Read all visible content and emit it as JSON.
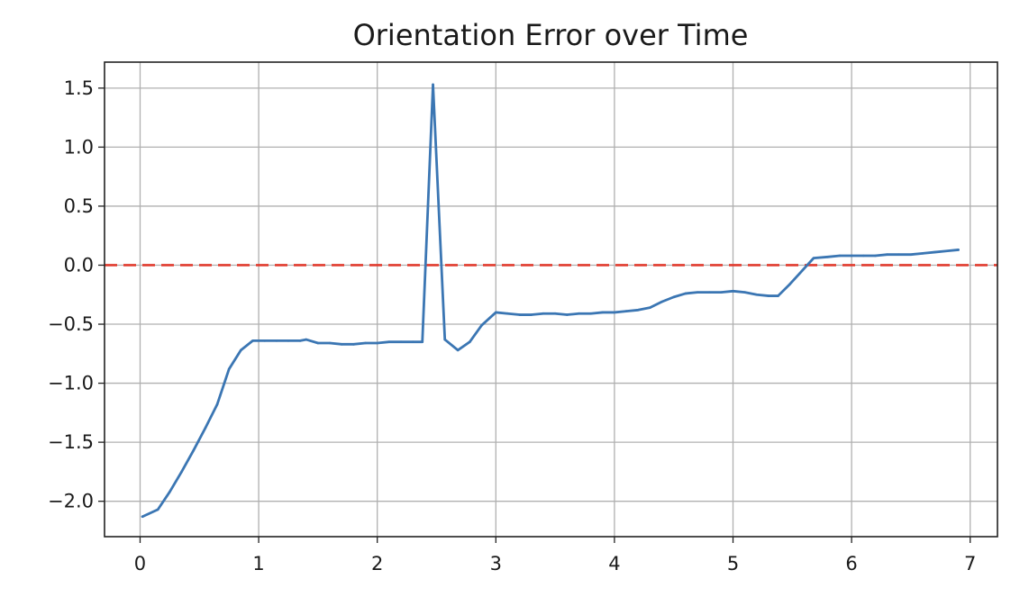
{
  "chart_data": {
    "type": "line",
    "title": "Orientation Error over Time",
    "xlabel": "",
    "ylabel": "",
    "xlim": [
      -0.3,
      7.23
    ],
    "ylim": [
      -2.3,
      1.72
    ],
    "x_ticks": [
      0,
      1,
      2,
      3,
      4,
      5,
      6,
      7
    ],
    "x_tick_labels": [
      "0",
      "1",
      "2",
      "3",
      "4",
      "5",
      "6",
      "7"
    ],
    "y_ticks": [
      1.5,
      1.0,
      0.5,
      0.0,
      -0.5,
      -1.0,
      -1.5,
      -2.0
    ],
    "y_tick_labels": [
      "1.5",
      "1.0",
      "0.5",
      "0.0",
      "−0.5",
      "−1.0",
      "−1.5",
      "−2.0"
    ],
    "grid": true,
    "series": [
      {
        "color": "#3b76b3",
        "x": [
          0.02,
          0.15,
          0.25,
          0.35,
          0.45,
          0.55,
          0.65,
          0.75,
          0.85,
          0.95,
          1.05,
          1.15,
          1.25,
          1.35,
          1.4,
          1.5,
          1.6,
          1.7,
          1.8,
          1.9,
          2.0,
          2.1,
          2.2,
          2.3,
          2.38,
          2.47,
          2.57,
          2.68,
          2.78,
          2.88,
          3.0,
          3.1,
          3.2,
          3.3,
          3.4,
          3.5,
          3.6,
          3.7,
          3.8,
          3.9,
          4.0,
          4.1,
          4.2,
          4.3,
          4.4,
          4.5,
          4.6,
          4.7,
          4.8,
          4.9,
          5.0,
          5.1,
          5.2,
          5.3,
          5.38,
          5.48,
          5.58,
          5.68,
          5.8,
          5.9,
          6.0,
          6.1,
          6.2,
          6.3,
          6.4,
          6.5,
          6.6,
          6.7,
          6.8,
          6.9
        ],
        "y": [
          -2.13,
          -2.07,
          -1.92,
          -1.75,
          -1.57,
          -1.38,
          -1.18,
          -0.88,
          -0.72,
          -0.64,
          -0.64,
          -0.64,
          -0.64,
          -0.64,
          -0.63,
          -0.66,
          -0.66,
          -0.67,
          -0.67,
          -0.66,
          -0.66,
          -0.65,
          -0.65,
          -0.65,
          -0.65,
          1.53,
          -0.63,
          -0.72,
          -0.65,
          -0.51,
          -0.4,
          -0.41,
          -0.42,
          -0.42,
          -0.41,
          -0.41,
          -0.42,
          -0.41,
          -0.41,
          -0.4,
          -0.4,
          -0.39,
          -0.38,
          -0.36,
          -0.31,
          -0.27,
          -0.24,
          -0.23,
          -0.23,
          -0.23,
          -0.22,
          -0.23,
          -0.25,
          -0.26,
          -0.26,
          -0.16,
          -0.05,
          0.06,
          0.07,
          0.08,
          0.08,
          0.08,
          0.08,
          0.09,
          0.09,
          0.09,
          0.1,
          0.11,
          0.12,
          0.13
        ]
      }
    ],
    "reference_lines": [
      {
        "y": 0.0,
        "color": "#e03b2e",
        "style": "dashed"
      }
    ]
  }
}
